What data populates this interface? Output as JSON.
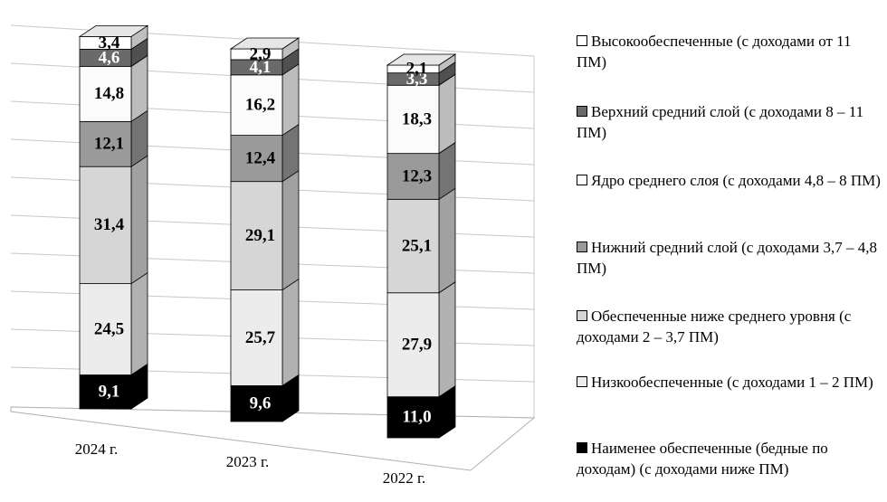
{
  "chart_data": {
    "type": "bar3d_stacked",
    "categories": [
      "2024 г.",
      "2023 г.",
      "2022 г."
    ],
    "ylim": [
      0,
      100
    ],
    "series": [
      {
        "name": "Наименее обеспеченные (бедные по доходам) (с доходами ниже ПМ)",
        "color": "#000000",
        "values": [
          9.1,
          9.6,
          11.0
        ],
        "value_labels": [
          "9,1",
          "9,6",
          "11,0"
        ]
      },
      {
        "name": "Низкообеспеченные (с доходами 1 – 2 ПМ)",
        "color": "#ececec",
        "values": [
          24.5,
          25.7,
          27.9
        ],
        "value_labels": [
          "24,5",
          "25,7",
          "27,9"
        ]
      },
      {
        "name": "Обеспеченные ниже среднего уровня (с доходами 2 – 3,7 ПМ)",
        "color": "#d6d6d6",
        "values": [
          31.4,
          29.1,
          25.1
        ],
        "value_labels": [
          "31,4",
          "29,1",
          "25,1"
        ]
      },
      {
        "name": "Нижний средний слой (с доходами 3,7 – 4,8 ПМ)",
        "color": "#9a9a9a",
        "values": [
          12.1,
          12.4,
          12.3
        ],
        "value_labels": [
          "12,1",
          "12,4",
          "12,3"
        ]
      },
      {
        "name": "Ядро среднего слоя (с доходами 4,8 – 8 ПМ)",
        "color": "#fbfbfb",
        "values": [
          14.8,
          16.2,
          18.3
        ],
        "value_labels": [
          "14,8",
          "16,2",
          "18,3"
        ]
      },
      {
        "name": "Верхний средний слой (с доходами 8 – 11 ПМ)",
        "color": "#6a6a6a",
        "values": [
          4.6,
          4.1,
          3.3
        ],
        "value_labels": [
          "4,6",
          "4,1",
          "3,3"
        ]
      },
      {
        "name": "Высокообеспеченные (с доходами от 11 ПМ)",
        "color": "#ffffff",
        "values": [
          3.4,
          2.9,
          2.1
        ],
        "value_labels": [
          "3,4",
          "2,9",
          "2,1"
        ]
      }
    ]
  }
}
